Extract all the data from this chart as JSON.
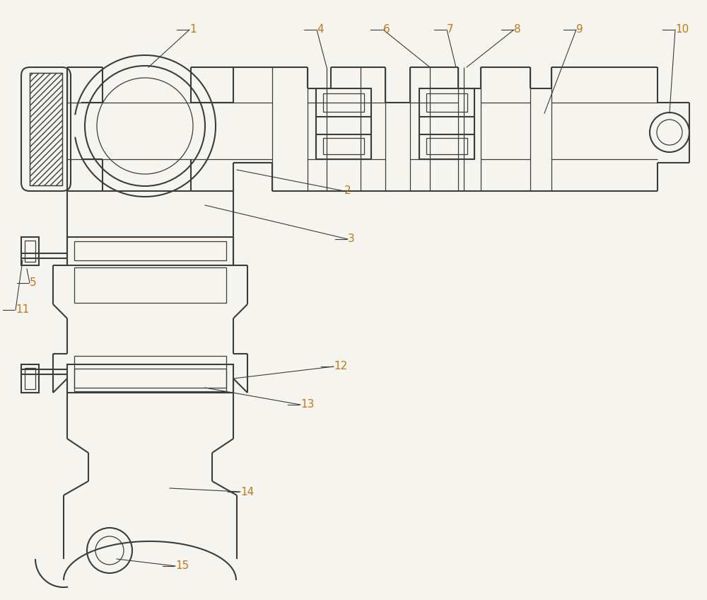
{
  "bg_color": "#f5f4ee",
  "lc": "#3c3c3c",
  "lw": 1.5,
  "tlw": 0.9,
  "nc": "#c07818",
  "ll": "#3c3c3c",
  "fs": 11
}
